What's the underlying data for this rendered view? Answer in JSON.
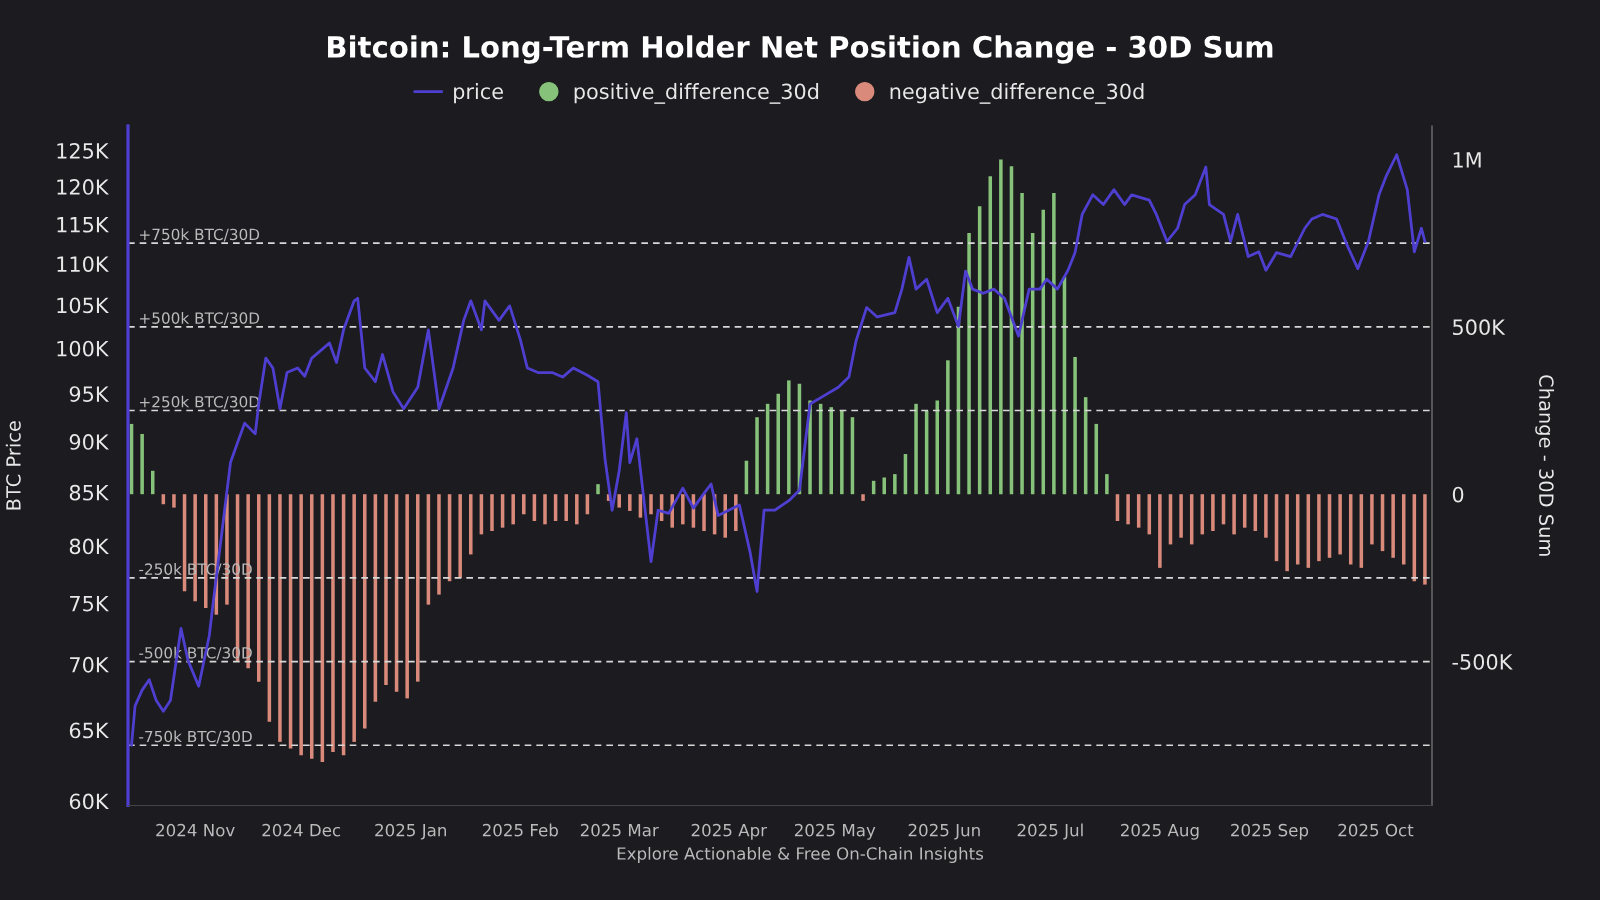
{
  "chart_data": {
    "type": "line",
    "title": "Bitcoin: Long-Term Holder Net Position Change - 30D Sum",
    "ylabel": "BTC Price",
    "y2label": "Change - 30D Sum",
    "log": "y",
    "legend": "top",
    "xlim": [
      "2024-10-13",
      "2025-10-17"
    ],
    "xticks": [
      {
        "value": "2024-11-01",
        "label": "2024 Nov"
      },
      {
        "value": "2024-12-01",
        "label": "2024 Dec"
      },
      {
        "value": "2025-01-01",
        "label": "2025 Jan"
      },
      {
        "value": "2025-02-01",
        "label": "2025 Feb"
      },
      {
        "value": "2025-03-01",
        "label": "2025 Mar"
      },
      {
        "value": "2025-04-01",
        "label": "2025 Apr"
      },
      {
        "value": "2025-05-01",
        "label": "2025 May"
      },
      {
        "value": "2025-06-01",
        "label": "2025 Jun"
      },
      {
        "value": "2025-07-01",
        "label": "2025 Jul"
      },
      {
        "value": "2025-08-01",
        "label": "2025 Aug"
      },
      {
        "value": "2025-09-01",
        "label": "2025 Sep"
      },
      {
        "value": "2025-10-01",
        "label": "2025 Oct"
      }
    ],
    "ylim": [
      59700,
      128500
    ],
    "yticks": [
      {
        "value": 60000,
        "label": "60K"
      },
      {
        "value": 65000,
        "label": "65K"
      },
      {
        "value": 70000,
        "label": "70K"
      },
      {
        "value": 75000,
        "label": "75K"
      },
      {
        "value": 80000,
        "label": "80K"
      },
      {
        "value": 85000,
        "label": "85K"
      },
      {
        "value": 90000,
        "label": "90K"
      },
      {
        "value": 95000,
        "label": "95K"
      },
      {
        "value": 100000,
        "label": "100K"
      },
      {
        "value": 105000,
        "label": "105K"
      },
      {
        "value": 110000,
        "label": "110K"
      },
      {
        "value": 115000,
        "label": "115K"
      },
      {
        "value": 120000,
        "label": "120K"
      },
      {
        "value": 125000,
        "label": "125K"
      }
    ],
    "y2lim": [
      -930000,
      1100000
    ],
    "y2ticks": [
      {
        "value": -500000,
        "label": "-500K"
      },
      0,
      {
        "value": 500000,
        "label": "500K"
      },
      {
        "value": 1000000,
        "label": "1M"
      }
    ],
    "series": [
      {
        "name": "price",
        "axis": "y",
        "color": "#4f3fd0",
        "x": [
          "2024-10-14",
          "2024-10-15",
          "2024-10-17",
          "2024-10-19",
          "2024-10-21",
          "2024-10-23",
          "2024-10-25",
          "2024-10-28",
          "2024-10-30",
          "2024-11-02",
          "2024-11-05",
          "2024-11-06",
          "2024-11-11",
          "2024-11-12",
          "2024-11-15",
          "2024-11-18",
          "2024-11-19",
          "2024-11-21",
          "2024-11-23",
          "2024-11-25",
          "2024-11-27",
          "2024-11-30",
          "2024-12-02",
          "2024-12-04",
          "2024-12-07",
          "2024-12-09",
          "2024-12-11",
          "2024-12-13",
          "2024-12-16",
          "2024-12-17",
          "2024-12-19",
          "2024-12-22",
          "2024-12-24",
          "2024-12-27",
          "2024-12-30",
          "2025-01-03",
          "2025-01-06",
          "2025-01-09",
          "2025-01-13",
          "2025-01-16",
          "2025-01-18",
          "2025-01-21",
          "2025-01-22",
          "2025-01-26",
          "2025-01-29",
          "2025-02-01",
          "2025-02-03",
          "2025-02-06",
          "2025-02-10",
          "2025-02-13",
          "2025-02-16",
          "2025-02-20",
          "2025-02-23",
          "2025-02-25",
          "2025-02-27",
          "2025-03-01",
          "2025-03-03",
          "2025-03-04",
          "2025-03-06",
          "2025-03-10",
          "2025-03-12",
          "2025-03-15",
          "2025-03-19",
          "2025-03-22",
          "2025-03-25",
          "2025-03-27",
          "2025-03-29",
          "2025-04-04",
          "2025-04-07",
          "2025-04-09",
          "2025-04-11",
          "2025-04-14",
          "2025-04-18",
          "2025-04-21",
          "2025-04-24",
          "2025-04-28",
          "2025-05-02",
          "2025-05-05",
          "2025-05-07",
          "2025-05-10",
          "2025-05-13",
          "2025-05-18",
          "2025-05-20",
          "2025-05-22",
          "2025-05-24",
          "2025-05-27",
          "2025-05-30",
          "2025-06-02",
          "2025-06-05",
          "2025-06-07",
          "2025-06-09",
          "2025-06-12",
          "2025-06-15",
          "2025-06-18",
          "2025-06-22",
          "2025-06-25",
          "2025-06-28",
          "2025-06-30",
          "2025-07-03",
          "2025-07-06",
          "2025-07-08",
          "2025-07-10",
          "2025-07-13",
          "2025-07-16",
          "2025-07-19",
          "2025-07-22",
          "2025-07-24",
          "2025-07-29",
          "2025-07-31",
          "2025-08-03",
          "2025-08-06",
          "2025-08-08",
          "2025-08-11",
          "2025-08-14",
          "2025-08-15",
          "2025-08-19",
          "2025-08-21",
          "2025-08-23",
          "2025-08-26",
          "2025-08-29",
          "2025-08-31",
          "2025-09-03",
          "2025-09-07",
          "2025-09-11",
          "2025-09-13",
          "2025-09-16",
          "2025-09-20",
          "2025-09-23",
          "2025-09-26",
          "2025-09-29",
          "2025-10-02",
          "2025-10-04",
          "2025-10-07",
          "2025-10-09",
          "2025-10-10",
          "2025-10-12",
          "2025-10-14",
          "2025-10-15"
        ],
        "values": [
          63900,
          66800,
          68000,
          68800,
          67200,
          66400,
          67200,
          72900,
          70300,
          68300,
          72300,
          74800,
          87900,
          88900,
          91900,
          90800,
          93900,
          98900,
          97800,
          93400,
          97300,
          97800,
          96900,
          98900,
          99900,
          100600,
          98400,
          102100,
          105500,
          105800,
          97800,
          96300,
          99300,
          95200,
          93400,
          95700,
          102100,
          93400,
          97800,
          103200,
          105500,
          102100,
          105500,
          103200,
          104900,
          101000,
          97800,
          97300,
          97300,
          96800,
          97800,
          97000,
          96300,
          88200,
          83300,
          87100,
          93000,
          87900,
          90300,
          78600,
          83300,
          83000,
          85400,
          83500,
          84900,
          85800,
          82800,
          83800,
          79500,
          76000,
          83300,
          83300,
          84200,
          85200,
          93900,
          94800,
          95700,
          96800,
          100800,
          104700,
          103600,
          104100,
          106900,
          110800,
          106900,
          108100,
          104100,
          105800,
          102500,
          109100,
          106900,
          106400,
          106900,
          105800,
          101400,
          106900,
          106900,
          108100,
          106900,
          109200,
          111400,
          116300,
          118900,
          117600,
          119600,
          117600,
          118900,
          118200,
          116300,
          112800,
          114500,
          117600,
          118900,
          122700,
          117600,
          116300,
          112800,
          116300,
          110900,
          111500,
          109200,
          111400,
          110900,
          114500,
          115700,
          116300,
          115700,
          112300,
          109400,
          112800,
          118900,
          121400,
          124400,
          121200,
          119600,
          111500,
          114500,
          112800
        ]
      },
      {
        "name": "positive_difference_30d",
        "type": "bar",
        "axis": "y2",
        "color": "#86c27a",
        "x": [
          "2024-10-14",
          "2024-10-17",
          "2024-10-20",
          "2025-02-23",
          "2025-04-06",
          "2025-04-09",
          "2025-04-12",
          "2025-04-15",
          "2025-04-18",
          "2025-04-21",
          "2025-04-24",
          "2025-04-27",
          "2025-04-30",
          "2025-05-03",
          "2025-05-06",
          "2025-05-12",
          "2025-05-15",
          "2025-05-18",
          "2025-05-21",
          "2025-05-24",
          "2025-05-27",
          "2025-05-30",
          "2025-06-02",
          "2025-06-05",
          "2025-06-08",
          "2025-06-11",
          "2025-06-14",
          "2025-06-17",
          "2025-06-20",
          "2025-06-23",
          "2025-06-26",
          "2025-06-29",
          "2025-07-02",
          "2025-07-05",
          "2025-07-08",
          "2025-07-11",
          "2025-07-14",
          "2025-07-17"
        ],
        "values": [
          210000,
          180000,
          70000,
          30000,
          100000,
          230000,
          270000,
          300000,
          340000,
          330000,
          280000,
          270000,
          260000,
          250000,
          230000,
          40000,
          50000,
          60000,
          120000,
          270000,
          250000,
          280000,
          400000,
          560000,
          780000,
          860000,
          950000,
          1000000,
          980000,
          900000,
          780000,
          850000,
          900000,
          650000,
          410000,
          290000,
          210000,
          60000
        ]
      },
      {
        "name": "negative_difference_30d",
        "type": "bar",
        "axis": "y2",
        "color": "#d98a7a",
        "x": [
          "2024-10-23",
          "2024-10-26",
          "2024-10-29",
          "2024-11-01",
          "2024-11-04",
          "2024-11-07",
          "2024-11-10",
          "2024-11-13",
          "2024-11-16",
          "2024-11-19",
          "2024-11-22",
          "2024-11-25",
          "2024-11-28",
          "2024-12-01",
          "2024-12-04",
          "2024-12-07",
          "2024-12-10",
          "2024-12-13",
          "2024-12-16",
          "2024-12-19",
          "2024-12-22",
          "2024-12-25",
          "2024-12-28",
          "2024-12-31",
          "2025-01-03",
          "2025-01-06",
          "2025-01-09",
          "2025-01-12",
          "2025-01-15",
          "2025-01-18",
          "2025-01-21",
          "2025-01-24",
          "2025-01-27",
          "2025-01-30",
          "2025-02-02",
          "2025-02-05",
          "2025-02-08",
          "2025-02-11",
          "2025-02-14",
          "2025-02-17",
          "2025-02-20",
          "2025-02-26",
          "2025-03-01",
          "2025-03-04",
          "2025-03-07",
          "2025-03-10",
          "2025-03-13",
          "2025-03-16",
          "2025-03-19",
          "2025-03-22",
          "2025-03-25",
          "2025-03-28",
          "2025-03-31",
          "2025-04-03",
          "2025-05-09",
          "2025-07-20",
          "2025-07-23",
          "2025-07-26",
          "2025-07-29",
          "2025-08-01",
          "2025-08-04",
          "2025-08-07",
          "2025-08-10",
          "2025-08-13",
          "2025-08-16",
          "2025-08-19",
          "2025-08-22",
          "2025-08-25",
          "2025-08-28",
          "2025-08-31",
          "2025-09-03",
          "2025-09-06",
          "2025-09-09",
          "2025-09-12",
          "2025-09-15",
          "2025-09-18",
          "2025-09-21",
          "2025-09-24",
          "2025-09-27",
          "2025-09-30",
          "2025-10-03",
          "2025-10-06",
          "2025-10-09",
          "2025-10-12",
          "2025-10-15"
        ],
        "values": [
          -30000,
          -40000,
          -290000,
          -320000,
          -340000,
          -360000,
          -330000,
          -500000,
          -520000,
          -560000,
          -680000,
          -740000,
          -760000,
          -780000,
          -790000,
          -800000,
          -770000,
          -780000,
          -740000,
          -700000,
          -620000,
          -570000,
          -590000,
          -610000,
          -560000,
          -330000,
          -300000,
          -260000,
          -250000,
          -180000,
          -120000,
          -110000,
          -100000,
          -90000,
          -60000,
          -80000,
          -90000,
          -80000,
          -80000,
          -90000,
          -60000,
          -20000,
          -40000,
          -50000,
          -70000,
          -60000,
          -80000,
          -100000,
          -90000,
          -100000,
          -110000,
          -120000,
          -130000,
          -110000,
          -20000,
          -80000,
          -90000,
          -100000,
          -120000,
          -220000,
          -150000,
          -130000,
          -150000,
          -120000,
          -110000,
          -90000,
          -120000,
          -100000,
          -110000,
          -130000,
          -200000,
          -230000,
          -210000,
          -220000,
          -200000,
          -190000,
          -180000,
          -210000,
          -220000,
          -150000,
          -170000,
          -190000,
          -210000,
          -260000,
          -270000
        ]
      }
    ],
    "ref_lines": [
      {
        "axis": "y2",
        "value": 750000,
        "label": "+750k BTC/30D",
        "color": "#d8d8d8",
        "line_style": "dashed"
      },
      {
        "axis": "y2",
        "value": 500000,
        "label": "+500k BTC/30D",
        "color": "#d8d8d8",
        "line_style": "dashed"
      },
      {
        "axis": "y2",
        "value": 250000,
        "label": "+250k BTC/30D",
        "color": "#d8d8d8",
        "line_style": "dashed"
      },
      {
        "axis": "y2",
        "value": -250000,
        "label": "-250k BTC/30D",
        "color": "#d8d8d8",
        "line_style": "dashed"
      },
      {
        "axis": "y2",
        "value": -500000,
        "label": "-500k BTC/30D",
        "color": "#d8d8d8",
        "line_style": "dashed"
      },
      {
        "axis": "y2",
        "value": -750000,
        "label": "-750k BTC/30D",
        "color": "#d8d8d8",
        "line_style": "dashed"
      }
    ],
    "annotations": [
      "Explore Actionable & Free On-Chain Insights"
    ]
  }
}
